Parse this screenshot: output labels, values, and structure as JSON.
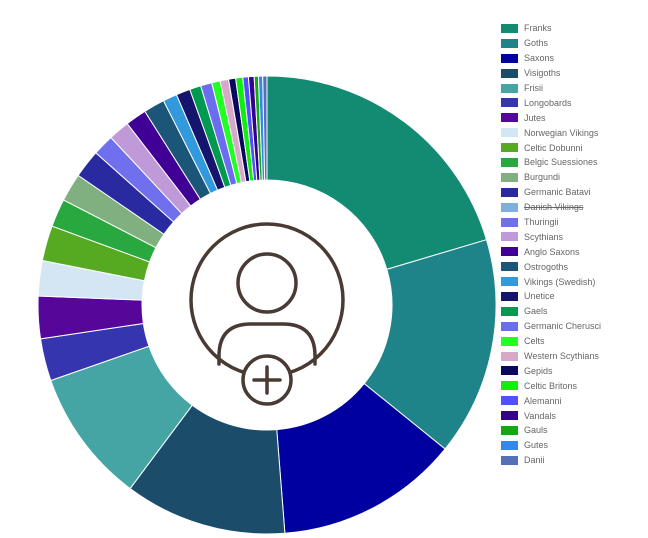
{
  "chart_data": {
    "type": "doughnut",
    "title": "",
    "legend_position": "right",
    "center_icon": "add-user-icon",
    "hidden_categories": [
      "Danish Vikings"
    ],
    "categories": [
      "Franks",
      "Goths",
      "Saxons",
      "Visigoths",
      "Frisii",
      "Longobards",
      "Jutes",
      "Norwegian Vikings",
      "Celtic Dobunni",
      "Belgic Suessiones",
      "Burgundi",
      "Germanic Batavi",
      "Danish Vikings",
      "Thuringii",
      "Scythians",
      "Anglo Saxons",
      "Ostrogoths",
      "Vikings (Swedish)",
      "Unetice",
      "Gaels",
      "Germanic Cherusci",
      "Celts",
      "Western Scythians",
      "Gepids",
      "Celtic Britons",
      "Alemanni",
      "Vandals",
      "Gauls",
      "Gutes",
      "Danii"
    ],
    "values": [
      20.5,
      15.5,
      13.0,
      11.5,
      9.5,
      3.0,
      3.0,
      2.5,
      2.5,
      2.0,
      2.0,
      2.0,
      0,
      1.5,
      1.5,
      1.5,
      1.5,
      1.0,
      1.0,
      0.8,
      0.8,
      0.6,
      0.6,
      0.5,
      0.5,
      0.4,
      0.4,
      0.3,
      0.3,
      0.3
    ],
    "colors": [
      "#138a72",
      "#1f8489",
      "#0000a0",
      "#1b4d6b",
      "#45a5a5",
      "#3535b0",
      "#57069a",
      "#d4e6f4",
      "#55aa22",
      "#2aa840",
      "#80b080",
      "#2a2aa0",
      "#7fb0dd",
      "#7070ee",
      "#c09ad8",
      "#400095",
      "#1b5577",
      "#3399dd",
      "#15156e",
      "#009950",
      "#6c6cf0",
      "#22ff22",
      "#d8a8c8",
      "#08085e",
      "#10ee10",
      "#5050ff",
      "#330090",
      "#11aa11",
      "#3388ee",
      "#5570b5"
    ]
  }
}
